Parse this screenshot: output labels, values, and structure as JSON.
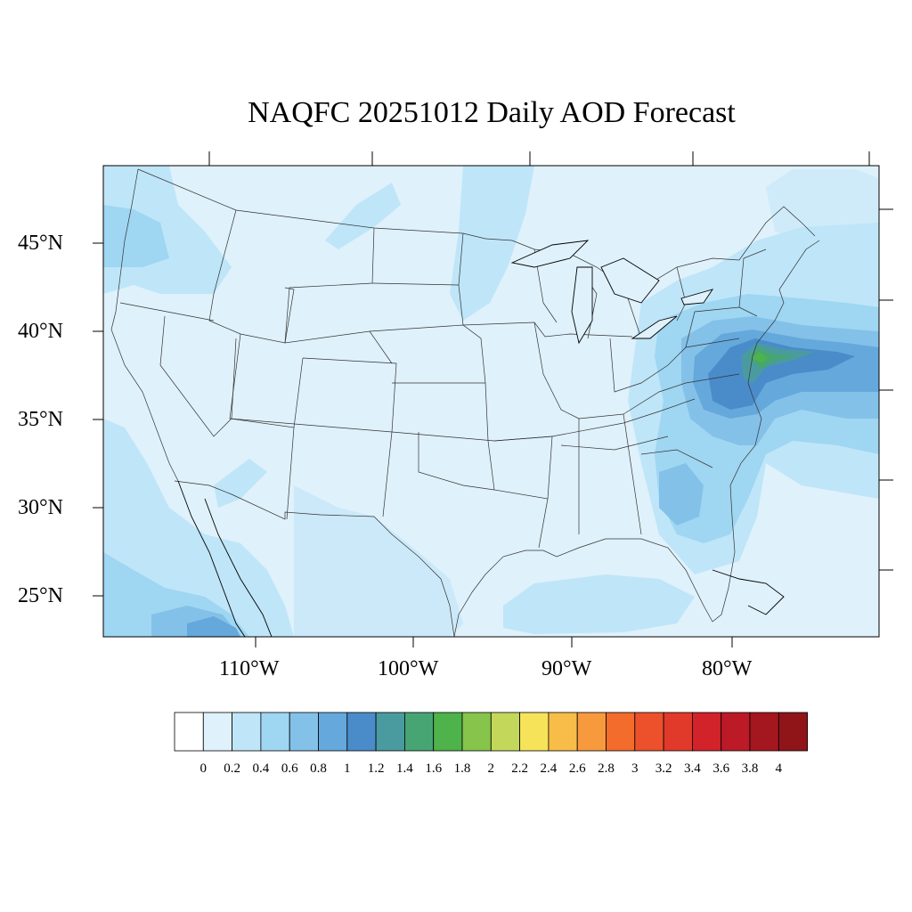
{
  "title": "NAQFC 20251012 Daily AOD Forecast",
  "lat_labels": [
    "45°N",
    "40°N",
    "35°N",
    "30°N",
    "25°N"
  ],
  "lon_labels": [
    "110°W",
    "100°W",
    "90°W",
    "80°W"
  ],
  "colorbar": {
    "labels": [
      "0",
      "0.2",
      "0.4",
      "0.6",
      "0.8",
      "1",
      "1.2",
      "1.4",
      "1.6",
      "1.8",
      "2",
      "2.2",
      "2.4",
      "2.6",
      "2.8",
      "3",
      "3.2",
      "3.4",
      "3.6",
      "3.8",
      "4"
    ],
    "colors": [
      "#ffffff",
      "#dff1fb",
      "#bfe5f8",
      "#9fd6f2",
      "#84c1e8",
      "#65a8dc",
      "#4a8cca",
      "#4a9b9f",
      "#47a574",
      "#4db34a",
      "#86c44c",
      "#c3d85a",
      "#f7e35a",
      "#f8bd48",
      "#f79a3d",
      "#f36c2c",
      "#ec512c",
      "#e13a2a",
      "#d2222a",
      "#bb1a26",
      "#a5171f",
      "#8f1519"
    ]
  }
}
